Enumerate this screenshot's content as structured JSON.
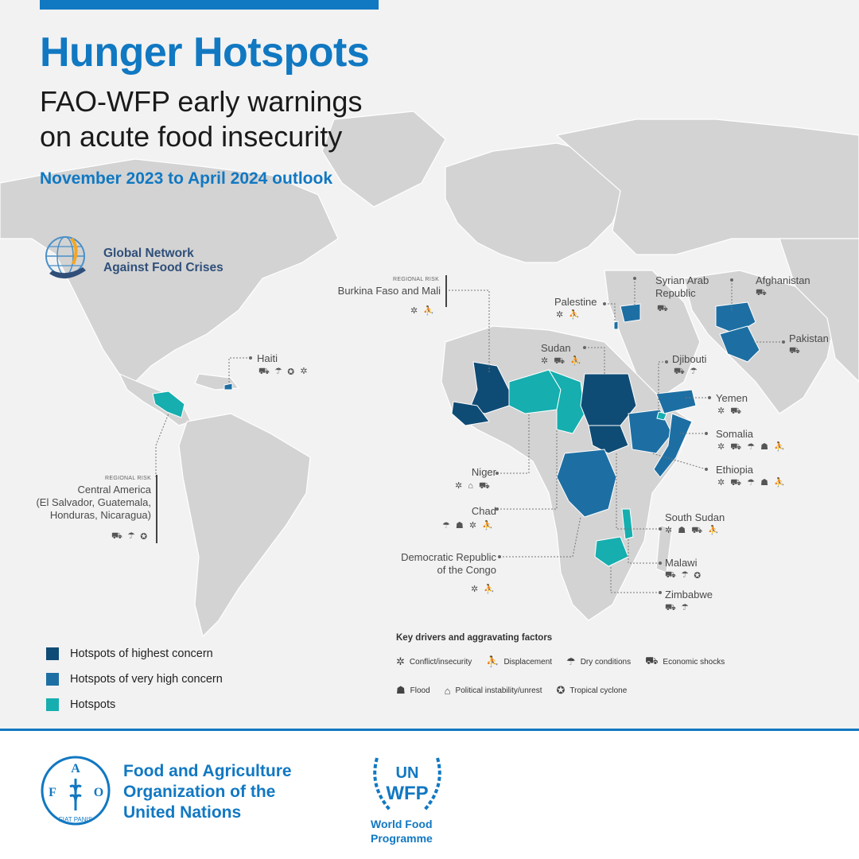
{
  "header": {
    "title": "Hunger Hotspots",
    "subtitle_lines": [
      "FAO-WFP early warnings",
      "on acute food insecurity"
    ],
    "outlook": "November 2023 to April 2024 outlook"
  },
  "gnafc": {
    "line1": "Global Network",
    "line2": "Against Food Crises"
  },
  "colors": {
    "accent": "#1178c2",
    "highest": "#0f4c75",
    "very_high": "#1d6fa3",
    "hotspot": "#16aeae",
    "land": "#d3d3d3"
  },
  "regional_risk_label": "REGIONAL RISK",
  "labels": {
    "burkina": {
      "name": "Burkina Faso and Mali",
      "icons": "✲ ⛹"
    },
    "palestine": {
      "name": "Palestine",
      "icons": "✲ ⛹"
    },
    "syria": {
      "name": "Syrian Arab Republic",
      "line1": "Syrian Arab",
      "line2": "Republic",
      "icons": "⛟"
    },
    "afghanistan": {
      "name": "Afghanistan",
      "icons": "⛟"
    },
    "pakistan": {
      "name": "Pakistan",
      "icons": "⛟"
    },
    "haiti": {
      "name": "Haiti",
      "icons": "⛟ ☂ ✪ ✲"
    },
    "sudan": {
      "name": "Sudan",
      "icons": "✲ ⛟ ⛹"
    },
    "djibouti": {
      "name": "Djibouti",
      "icons": "⛟ ☂"
    },
    "yemen": {
      "name": "Yemen",
      "icons": "✲ ⛟"
    },
    "somalia": {
      "name": "Somalia",
      "icons": "✲ ⛟ ☂ ☗ ⛹"
    },
    "ethiopia": {
      "name": "Ethiopia",
      "icons": "✲ ⛟ ☂ ☗ ⛹"
    },
    "niger": {
      "name": "Niger",
      "icons": "✲ ⌂ ⛟"
    },
    "chad": {
      "name": "Chad",
      "icons": "☂ ☗ ✲ ⛹"
    },
    "drc": {
      "name": "Democratic Republic of the Congo",
      "line1": "Democratic Republic",
      "line2": "of the Congo",
      "icons": "✲ ⛹"
    },
    "south_sudan": {
      "name": "South Sudan",
      "icons": "✲ ☗ ⛟ ⛹"
    },
    "malawi": {
      "name": "Malawi",
      "icons": "⛟ ☂ ✪"
    },
    "zimbabwe": {
      "name": "Zimbabwe",
      "icons": "⛟ ☂"
    },
    "central_america": {
      "lines": [
        "Central America",
        "(El Salvador, Guatemala,",
        "Honduras, Nicaragua)"
      ],
      "icons": "⛟ ☂ ✪"
    }
  },
  "legend": {
    "items": [
      {
        "label": "Hotspots of highest concern",
        "color": "#0f4c75"
      },
      {
        "label": "Hotspots of very high concern",
        "color": "#1d6fa3"
      },
      {
        "label": "Hotspots",
        "color": "#16aeae"
      }
    ]
  },
  "drivers": {
    "title": "Key drivers and aggravating factors",
    "row1": [
      {
        "icon": "✲",
        "icon_name": "conflict-icon",
        "label": "Conflict/insecurity"
      },
      {
        "icon": "⛹",
        "icon_name": "displacement-icon",
        "label": "Displacement"
      },
      {
        "icon": "☂",
        "icon_name": "dry-conditions-icon",
        "label": "Dry conditions"
      },
      {
        "icon": "⛟",
        "icon_name": "economic-shocks-icon",
        "label": "Economic shocks"
      }
    ],
    "row2": [
      {
        "icon": "☗",
        "icon_name": "flood-icon",
        "label": "Flood"
      },
      {
        "icon": "⌂",
        "icon_name": "political-instability-icon",
        "label": "Political instability/unrest"
      },
      {
        "icon": "✪",
        "icon_name": "tropical-cyclone-icon",
        "label": "Tropical cyclone"
      }
    ]
  },
  "footer": {
    "fao_lines": [
      "Food and Agriculture",
      "Organization of the",
      "United Nations"
    ],
    "fao_seal_letters": "FAO FIAT PANIS",
    "wfp_seal": "UN WFP",
    "wfp_lines": [
      "World Food",
      "Programme"
    ]
  }
}
